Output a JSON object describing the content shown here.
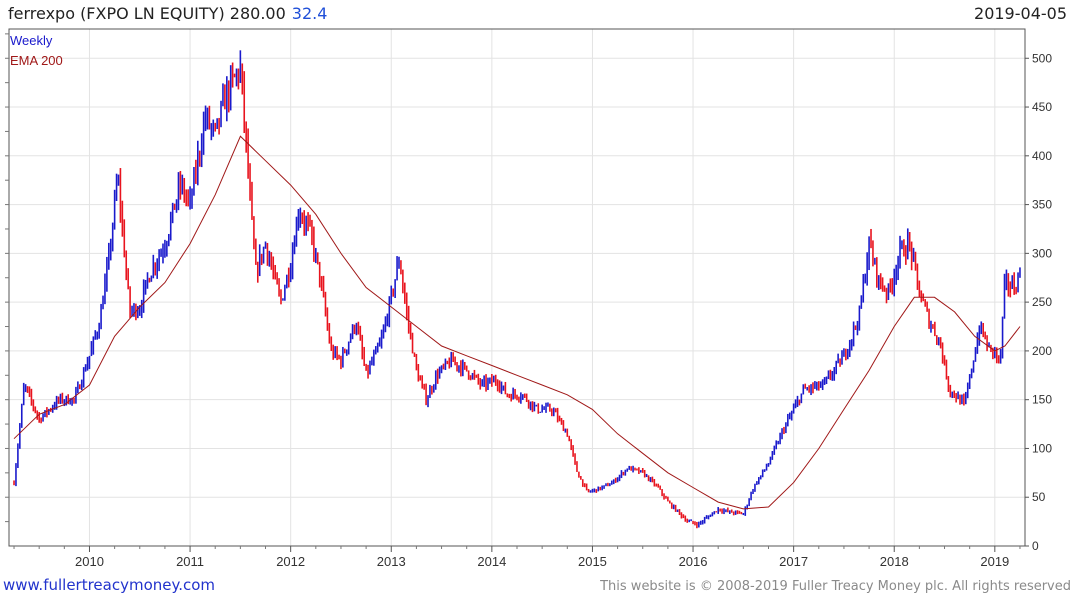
{
  "header": {
    "title": "ferrexpo (FXPO LN EQUITY) 280.00",
    "change": "32.4",
    "date": "2019-04-05"
  },
  "footer": {
    "site": "www.fullertreacymoney.com",
    "copyright": "This website is © 2008-2019 Fuller Treacy Money plc. All rights reserved"
  },
  "colors": {
    "up": "#1a1acc",
    "down": "#e8141e",
    "ema": "#a01818",
    "grid": "#e3e3e3"
  },
  "chart_data": {
    "type": "line",
    "legend": [
      "Weekly",
      "EMA 200"
    ],
    "legend_position": "top-left",
    "grid": true,
    "xlim": [
      2009.2,
      2019.3
    ],
    "ylim": [
      0,
      530
    ],
    "x_ticks": [
      2010,
      2011,
      2012,
      2013,
      2014,
      2015,
      2016,
      2017,
      2018,
      2019
    ],
    "y_ticks": [
      0,
      50,
      100,
      150,
      200,
      250,
      300,
      350,
      400,
      450,
      500
    ],
    "series": [
      {
        "name": "Weekly",
        "x": [
          2009.25,
          2009.35,
          2009.5,
          2009.7,
          2009.85,
          2010.0,
          2010.1,
          2010.2,
          2010.28,
          2010.4,
          2010.5,
          2010.6,
          2010.75,
          2010.9,
          2011.0,
          2011.15,
          2011.25,
          2011.35,
          2011.5,
          2011.6,
          2011.65,
          2011.75,
          2011.9,
          2012.0,
          2012.08,
          2012.15,
          2012.2,
          2012.3,
          2012.4,
          2012.5,
          2012.65,
          2012.75,
          2012.9,
          2013.0,
          2013.08,
          2013.15,
          2013.25,
          2013.35,
          2013.45,
          2013.6,
          2013.75,
          2013.9,
          2014.05,
          2014.15,
          2014.3,
          2014.45,
          2014.6,
          2014.75,
          2014.85,
          2014.95,
          2015.1,
          2015.2,
          2015.35,
          2015.5,
          2015.65,
          2015.75,
          2015.85,
          2015.95,
          2016.05,
          2016.15,
          2016.25,
          2016.35,
          2016.5,
          2016.6,
          2016.75,
          2016.9,
          2017.1,
          2017.3,
          2017.5,
          2017.65,
          2017.75,
          2017.85,
          2017.95,
          2018.05,
          2018.15,
          2018.25,
          2018.35,
          2018.45,
          2018.55,
          2018.7,
          2018.85,
          2018.95,
          2019.0,
          2019.05,
          2019.1,
          2019.2,
          2019.25
        ],
        "values": [
          65,
          165,
          130,
          150,
          150,
          195,
          230,
          300,
          380,
          240,
          245,
          280,
          310,
          370,
          350,
          440,
          420,
          460,
          490,
          350,
          280,
          310,
          250,
          290,
          345,
          330,
          320,
          270,
          200,
          190,
          230,
          175,
          210,
          255,
          295,
          240,
          180,
          150,
          175,
          190,
          180,
          165,
          170,
          155,
          155,
          140,
          140,
          115,
          75,
          55,
          60,
          65,
          80,
          75,
          60,
          45,
          35,
          25,
          22,
          30,
          38,
          35,
          33,
          60,
          85,
          120,
          160,
          165,
          195,
          235,
          310,
          270,
          260,
          300,
          310,
          260,
          230,
          210,
          160,
          145,
          225,
          200,
          200,
          185,
          270,
          265,
          280
        ]
      },
      {
        "name": "EMA 200",
        "x": [
          2009.25,
          2009.5,
          2009.75,
          2010.0,
          2010.25,
          2010.5,
          2010.75,
          2011.0,
          2011.25,
          2011.5,
          2011.75,
          2012.0,
          2012.25,
          2012.5,
          2012.75,
          2013.0,
          2013.25,
          2013.5,
          2013.75,
          2014.0,
          2014.25,
          2014.5,
          2014.75,
          2015.0,
          2015.25,
          2015.5,
          2015.75,
          2016.0,
          2016.25,
          2016.5,
          2016.75,
          2017.0,
          2017.25,
          2017.5,
          2017.75,
          2018.0,
          2018.2,
          2018.4,
          2018.6,
          2018.8,
          2019.0,
          2019.1,
          2019.25
        ],
        "values": [
          110,
          135,
          145,
          165,
          215,
          245,
          270,
          310,
          360,
          420,
          395,
          370,
          340,
          300,
          265,
          245,
          225,
          205,
          195,
          185,
          175,
          165,
          155,
          140,
          115,
          95,
          75,
          60,
          45,
          38,
          40,
          65,
          100,
          140,
          180,
          225,
          255,
          255,
          240,
          215,
          200,
          205,
          225
        ]
      }
    ]
  }
}
